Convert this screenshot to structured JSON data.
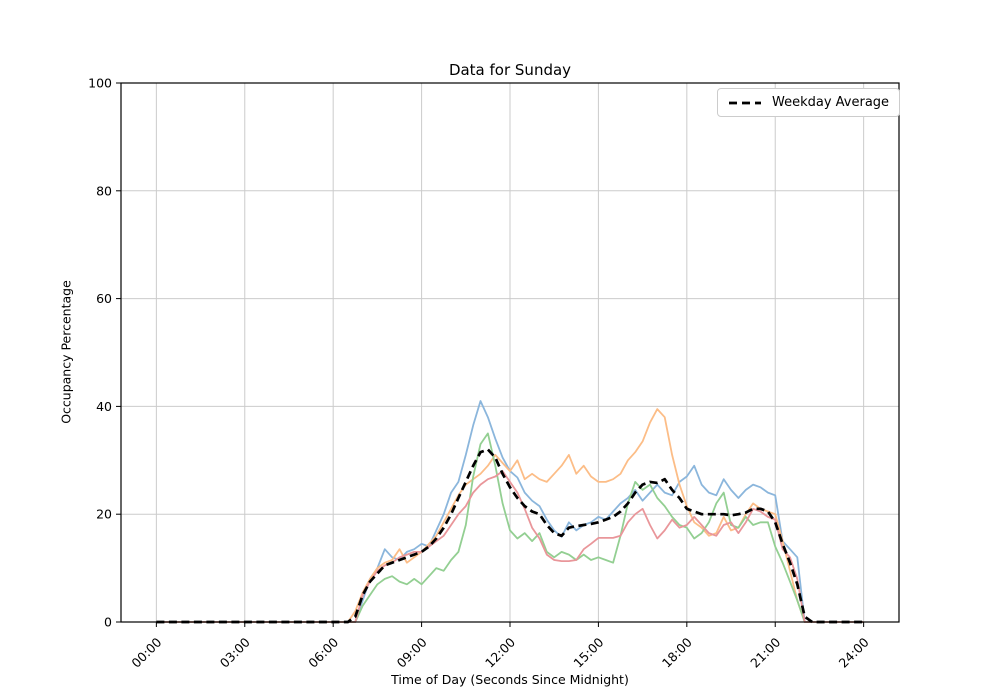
{
  "window": {
    "title": "Data for Sunday"
  },
  "chart_data": {
    "type": "line",
    "title": "Data for Sunday",
    "xlabel": "Time of Day (Seconds Since Midnight)",
    "ylabel": "Occupancy Percentage",
    "xlim_hours": [
      0,
      24
    ],
    "ylim": [
      0,
      100
    ],
    "grid": true,
    "x_tick_hours": [
      0,
      3,
      6,
      9,
      12,
      15,
      18,
      21,
      24
    ],
    "x_tick_labels": [
      "00:00",
      "03:00",
      "06:00",
      "09:00",
      "12:00",
      "15:00",
      "18:00",
      "21:00",
      "24:00"
    ],
    "y_ticks": [
      0,
      20,
      40,
      60,
      80,
      100
    ],
    "x_start_hour": 0,
    "x_step_hours": 0.25,
    "legend": {
      "position": "upper right",
      "entries": [
        {
          "label": "Weekday Average",
          "style": "dashed",
          "color": "#000000"
        }
      ]
    },
    "colors": {
      "grid": "#cbcbcb",
      "spine": "#000000",
      "background": "#ffffff"
    },
    "series": [
      {
        "name": "trace-1-blue",
        "color": "#8bb6dc",
        "dashed": false,
        "width": 1.8,
        "values": [
          0,
          0,
          0,
          0,
          0,
          0,
          0,
          0,
          0,
          0,
          0,
          0,
          0,
          0,
          0,
          0,
          0,
          0,
          0,
          0,
          0,
          0,
          0,
          0,
          0,
          0,
          0,
          0,
          4,
          8,
          10,
          13.5,
          12,
          11.5,
          13,
          13.5,
          14.5,
          14,
          17,
          20,
          24,
          26,
          31,
          36.5,
          41,
          38,
          34,
          30.5,
          28,
          26.8,
          24,
          22.5,
          21.5,
          19,
          17,
          15.8,
          18.5,
          17,
          18,
          18.5,
          19.5,
          19,
          20.5,
          22,
          23,
          24.5,
          22.5,
          24,
          25.5,
          24,
          23.5,
          26,
          27,
          29,
          25.5,
          24,
          23.5,
          26.5,
          24.5,
          23,
          24.5,
          25.5,
          25,
          24,
          23.5,
          15,
          13.5,
          12,
          0,
          0,
          0,
          0,
          0,
          0,
          0,
          0,
          0
        ]
      },
      {
        "name": "trace-2-orange",
        "color": "#fcbd87",
        "dashed": false,
        "width": 1.8,
        "values": [
          0,
          0,
          0,
          0,
          0,
          0,
          0,
          0,
          0,
          0,
          0,
          0,
          0,
          0,
          0,
          0,
          0,
          0,
          0,
          0,
          0,
          0,
          0,
          0,
          0,
          0,
          0,
          2,
          5.5,
          8,
          10,
          11,
          11.5,
          13.5,
          11,
          12,
          13,
          14.5,
          16,
          18.5,
          21,
          23.5,
          25.5,
          26.5,
          27.5,
          29,
          31,
          29.5,
          28,
          30,
          26.5,
          27.5,
          26.5,
          26,
          27.5,
          29,
          31,
          27.5,
          29,
          27,
          26,
          26,
          26.5,
          27.5,
          30,
          31.5,
          33.5,
          37,
          39.5,
          38,
          31,
          25.5,
          21.5,
          18.5,
          17.5,
          16,
          16.5,
          19.5,
          17,
          17.5,
          20,
          22,
          21,
          20.5,
          20,
          15,
          9.5,
          4,
          0,
          0,
          0,
          0,
          0,
          0,
          0,
          0,
          0
        ]
      },
      {
        "name": "trace-3-green",
        "color": "#93cf92",
        "dashed": false,
        "width": 1.8,
        "values": [
          0,
          0,
          0,
          0,
          0,
          0,
          0,
          0,
          0,
          0,
          0,
          0,
          0,
          0,
          0,
          0,
          0,
          0,
          0,
          0,
          0,
          0,
          0,
          0,
          0,
          0,
          0,
          0,
          3,
          5,
          7,
          8,
          8.5,
          7.5,
          7,
          8,
          7,
          8.5,
          10,
          9.5,
          11.5,
          13,
          18,
          27,
          33,
          35,
          29,
          22,
          17,
          15.5,
          16.5,
          15,
          16.5,
          13,
          12,
          13,
          12.5,
          11.5,
          12.5,
          11.5,
          12,
          11.5,
          11,
          16,
          22,
          26,
          24.5,
          25.5,
          23,
          21.5,
          19.5,
          18,
          17.5,
          15.5,
          16.5,
          18.5,
          22,
          24,
          18,
          17.5,
          19.5,
          18,
          18.5,
          18.5,
          14,
          11,
          7.5,
          4,
          0,
          0,
          0,
          0,
          0,
          0,
          0,
          0,
          0
        ]
      },
      {
        "name": "trace-4-red",
        "color": "#e9969a",
        "dashed": false,
        "width": 1.8,
        "values": [
          0,
          0,
          0,
          0,
          0,
          0,
          0,
          0,
          0,
          0,
          0,
          0,
          0,
          0,
          0,
          0,
          0,
          0,
          0,
          0,
          0,
          0,
          0,
          0,
          0,
          0,
          0,
          0,
          5,
          7.5,
          9.5,
          10.5,
          11,
          12,
          12.5,
          13,
          13,
          14,
          15,
          16,
          18,
          20,
          21.5,
          24,
          25.5,
          26.5,
          27,
          28,
          26,
          24,
          21,
          17.5,
          15.5,
          12.5,
          11.5,
          11.3,
          11.3,
          11.5,
          13.5,
          14.5,
          15.6,
          15.6,
          15.6,
          16,
          18.5,
          20,
          21,
          18,
          15.5,
          17,
          19,
          17.5,
          18,
          19.5,
          18,
          16.5,
          16,
          18,
          18.5,
          16.5,
          18.5,
          21,
          20.5,
          19.5,
          19,
          13.5,
          12,
          8,
          0,
          0,
          0,
          0,
          0,
          0,
          0,
          0,
          0
        ]
      },
      {
        "name": "Weekday Average",
        "color": "#000000",
        "dashed": true,
        "width": 2.7,
        "values": [
          0,
          0,
          0,
          0,
          0,
          0,
          0,
          0,
          0,
          0,
          0,
          0,
          0,
          0,
          0,
          0,
          0,
          0,
          0,
          0,
          0,
          0,
          0,
          0,
          0,
          0,
          0,
          1,
          5,
          7.5,
          9,
          10.5,
          11,
          11.5,
          12,
          12.5,
          13,
          14,
          15.5,
          17.5,
          20,
          23,
          26,
          29,
          31.5,
          32,
          30.5,
          27.5,
          25,
          23,
          21.5,
          20.5,
          20,
          18,
          16.5,
          16,
          17.5,
          17.8,
          18,
          18.2,
          18.5,
          19,
          19.5,
          20.5,
          22,
          24,
          25.5,
          26,
          25.8,
          26.5,
          24.5,
          23,
          21,
          20.5,
          20,
          20,
          20,
          20,
          19.8,
          20,
          20.3,
          21,
          21,
          20.5,
          18.5,
          14.5,
          11,
          7,
          1,
          0,
          0,
          0,
          0,
          0,
          0,
          0,
          0
        ]
      }
    ]
  }
}
